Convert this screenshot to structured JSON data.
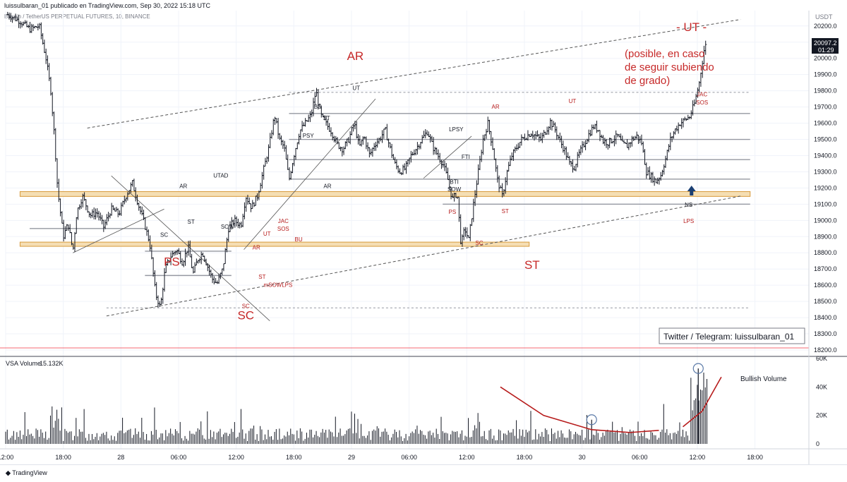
{
  "header": {
    "publisher": "luissulbaran_01 publicado en TradingView.com, Sep 30, 2022 15:18 UTC",
    "symbol": "Bitcoin / TetherUS PERPETUAL FUTURES, 10, BINANCE"
  },
  "price_axis": {
    "currency": "USDT",
    "last_price": "20097.2",
    "countdown": "01:29"
  },
  "watermark": "Twitter / Telegram: luissulbaran_01",
  "volume_pane": {
    "title": "VSA Volume",
    "value": "15.132K",
    "annotation": "Bullish Volume"
  },
  "footer": {
    "brand": "TradingView"
  },
  "annotations": {
    "ut_title": "- UT -",
    "ut_note_1": "(posible, en caso",
    "ut_note_2": "de seguir subiendo",
    "ut_note_3": "de grado)",
    "major_labels": [
      {
        "text": "PS",
        "t": 17.3,
        "p": 18720
      },
      {
        "text": "SC",
        "t": 25.0,
        "p": 18390
      },
      {
        "text": "AR",
        "t": 36.4,
        "p": 19990
      },
      {
        "text": "ST",
        "t": 54.8,
        "p": 18700
      },
      {
        "text": "- UT -",
        "t": 68.2,
        "p": 20210
      }
    ],
    "small_labels": [
      {
        "text": "SC",
        "t": 16.5,
        "p": 18900,
        "c": "#131722"
      },
      {
        "text": "AR",
        "t": 18.5,
        "p": 19200,
        "c": "#131722"
      },
      {
        "text": "ST",
        "t": 19.3,
        "p": 18980,
        "c": "#131722"
      },
      {
        "text": "UTAD",
        "t": 22.4,
        "p": 19265,
        "c": "#131722"
      },
      {
        "text": "SOW",
        "t": 23.1,
        "p": 18950,
        "c": "#131722"
      },
      {
        "text": "SC",
        "t": 25.0,
        "p": 18460,
        "c": "#b71c1c"
      },
      {
        "text": "AR",
        "t": 26.1,
        "p": 18820,
        "c": "#b71c1c"
      },
      {
        "text": "UT",
        "t": 27.2,
        "p": 18905,
        "c": "#b71c1c"
      },
      {
        "text": "ST",
        "t": 26.7,
        "p": 18640,
        "c": "#b71c1c"
      },
      {
        "text": "mSOW",
        "t": 27.8,
        "p": 18590,
        "c": "#b71c1c"
      },
      {
        "text": "LPS",
        "t": 29.3,
        "p": 18590,
        "c": "#b71c1c"
      },
      {
        "text": "JAC",
        "t": 28.9,
        "p": 18985,
        "c": "#b71c1c"
      },
      {
        "text": "SOS",
        "t": 28.9,
        "p": 18935,
        "c": "#b71c1c"
      },
      {
        "text": "BU",
        "t": 30.5,
        "p": 18870,
        "c": "#b71c1c"
      },
      {
        "text": "PSY",
        "t": 31.5,
        "p": 19510,
        "c": "#131722"
      },
      {
        "text": "BC",
        "t": 32.5,
        "p": 19690,
        "c": "#131722"
      },
      {
        "text": "ST",
        "t": 33.4,
        "p": 19620,
        "c": "#131722"
      },
      {
        "text": "AR",
        "t": 33.5,
        "p": 19200,
        "c": "#131722"
      },
      {
        "text": "UT",
        "t": 36.5,
        "p": 19805,
        "c": "#131722"
      },
      {
        "text": "LPSY",
        "t": 46.9,
        "p": 19550,
        "c": "#131722"
      },
      {
        "text": "FTI",
        "t": 47.9,
        "p": 19380,
        "c": "#131722"
      },
      {
        "text": "BTI",
        "t": 46.7,
        "p": 19225,
        "c": "#131722"
      },
      {
        "text": "SOW",
        "t": 46.7,
        "p": 19180,
        "c": "#131722"
      },
      {
        "text": "PS",
        "t": 46.5,
        "p": 19040,
        "c": "#b71c1c"
      },
      {
        "text": "SC",
        "t": 49.3,
        "p": 18850,
        "c": "#b71c1c"
      },
      {
        "text": "AR",
        "t": 51.0,
        "p": 19690,
        "c": "#b71c1c"
      },
      {
        "text": "ST",
        "t": 52.0,
        "p": 19045,
        "c": "#b71c1c"
      },
      {
        "text": "UT",
        "t": 59.0,
        "p": 19725,
        "c": "#b71c1c"
      },
      {
        "text": "NS",
        "t": 71.1,
        "p": 19085,
        "c": "#131722"
      },
      {
        "text": "LPS",
        "t": 71.1,
        "p": 18985,
        "c": "#b71c1c"
      },
      {
        "text": "JAC",
        "t": 72.5,
        "p": 19765,
        "c": "#b71c1c"
      },
      {
        "text": "SOS",
        "t": 72.5,
        "p": 19715,
        "c": "#b71c1c"
      }
    ]
  },
  "chart_data": {
    "type": "candlestick",
    "title": "Bitcoin / TetherUS PERPETUAL FUTURES, 10, BINANCE",
    "x_unit": "hours since Sep 27 12:00 UTC",
    "ylabel": "USDT",
    "ylim": [
      18150,
      20330
    ],
    "xlim": [
      0,
      77
    ],
    "yticks": [
      18200,
      18300,
      18400,
      18500,
      18600,
      18700,
      18800,
      18900,
      19000,
      19100,
      19200,
      19300,
      19400,
      19500,
      19600,
      19700,
      19800,
      19900,
      20000,
      20100,
      20200
    ],
    "xticks": [
      {
        "t": 0,
        "label": "12:00"
      },
      {
        "t": 6,
        "label": "18:00"
      },
      {
        "t": 12,
        "label": "28"
      },
      {
        "t": 18,
        "label": "06:00"
      },
      {
        "t": 24,
        "label": "12:00"
      },
      {
        "t": 30,
        "label": "18:00"
      },
      {
        "t": 36,
        "label": "29"
      },
      {
        "t": 42,
        "label": "06:00"
      },
      {
        "t": 48,
        "label": "12:00"
      },
      {
        "t": 54,
        "label": "18:00"
      },
      {
        "t": 60,
        "label": "30"
      },
      {
        "t": 66,
        "label": "06:00"
      },
      {
        "t": 72,
        "label": "12:00"
      },
      {
        "t": 78,
        "label": "18:00"
      }
    ],
    "price_path": [
      [
        0.2,
        20270
      ],
      [
        1.5,
        20230
      ],
      [
        2.5,
        20180
      ],
      [
        3.5,
        20200
      ],
      [
        4.2,
        20000
      ],
      [
        4.7,
        19800
      ],
      [
        5.1,
        19500
      ],
      [
        5.4,
        19200
      ],
      [
        5.7,
        19050
      ],
      [
        6.0,
        18900
      ],
      [
        6.5,
        18980
      ],
      [
        7.0,
        18810
      ],
      [
        7.4,
        19050
      ],
      [
        8.0,
        19150
      ],
      [
        8.8,
        19030
      ],
      [
        9.5,
        19050
      ],
      [
        10.2,
        18960
      ],
      [
        11.0,
        19070
      ],
      [
        11.8,
        19040
      ],
      [
        12.5,
        19150
      ],
      [
        13.2,
        19230
      ],
      [
        13.8,
        19100
      ],
      [
        14.4,
        18990
      ],
      [
        15.0,
        18860
      ],
      [
        15.6,
        18550
      ],
      [
        16.1,
        18460
      ],
      [
        16.6,
        18700
      ],
      [
        17.2,
        18780
      ],
      [
        17.8,
        18820
      ],
      [
        18.4,
        18740
      ],
      [
        19.0,
        18840
      ],
      [
        19.5,
        18670
      ],
      [
        20.0,
        18760
      ],
      [
        20.5,
        18800
      ],
      [
        21.0,
        18720
      ],
      [
        21.5,
        18640
      ],
      [
        22.0,
        18610
      ],
      [
        22.6,
        18700
      ],
      [
        23.2,
        18950
      ],
      [
        23.8,
        19000
      ],
      [
        24.5,
        18970
      ],
      [
        25.0,
        19150
      ],
      [
        25.6,
        19080
      ],
      [
        26.2,
        19150
      ],
      [
        26.8,
        19300
      ],
      [
        27.4,
        19450
      ],
      [
        28.0,
        19650
      ],
      [
        28.5,
        19500
      ],
      [
        29.0,
        19450
      ],
      [
        29.5,
        19250
      ],
      [
        30.0,
        19400
      ],
      [
        30.6,
        19550
      ],
      [
        31.2,
        19600
      ],
      [
        31.8,
        19650
      ],
      [
        32.3,
        19800
      ],
      [
        32.8,
        19650
      ],
      [
        33.3,
        19600
      ],
      [
        33.9,
        19550
      ],
      [
        34.5,
        19470
      ],
      [
        35.1,
        19440
      ],
      [
        35.7,
        19500
      ],
      [
        36.3,
        19600
      ],
      [
        36.8,
        19450
      ],
      [
        37.3,
        19520
      ],
      [
        37.9,
        19400
      ],
      [
        38.4,
        19470
      ],
      [
        38.9,
        19500
      ],
      [
        39.5,
        19560
      ],
      [
        40.0,
        19450
      ],
      [
        40.5,
        19350
      ],
      [
        41.0,
        19300
      ],
      [
        41.6,
        19320
      ],
      [
        42.2,
        19400
      ],
      [
        42.8,
        19450
      ],
      [
        43.3,
        19500
      ],
      [
        43.9,
        19550
      ],
      [
        44.5,
        19450
      ],
      [
        45.0,
        19400
      ],
      [
        45.5,
        19350
      ],
      [
        46.0,
        19260
      ],
      [
        46.5,
        19130
      ],
      [
        47.0,
        19170
      ],
      [
        47.4,
        18850
      ],
      [
        47.8,
        18950
      ],
      [
        48.2,
        18880
      ],
      [
        48.7,
        19100
      ],
      [
        49.2,
        19300
      ],
      [
        49.7,
        19500
      ],
      [
        50.2,
        19600
      ],
      [
        50.7,
        19450
      ],
      [
        51.2,
        19250
      ],
      [
        51.7,
        19150
      ],
      [
        52.2,
        19300
      ],
      [
        52.7,
        19400
      ],
      [
        53.2,
        19450
      ],
      [
        53.7,
        19500
      ],
      [
        54.2,
        19520
      ],
      [
        54.7,
        19540
      ],
      [
        55.2,
        19520
      ],
      [
        55.7,
        19500
      ],
      [
        56.2,
        19550
      ],
      [
        56.7,
        19610
      ],
      [
        57.2,
        19560
      ],
      [
        57.7,
        19490
      ],
      [
        58.2,
        19430
      ],
      [
        58.7,
        19350
      ],
      [
        59.2,
        19330
      ],
      [
        59.7,
        19410
      ],
      [
        60.2,
        19470
      ],
      [
        60.7,
        19530
      ],
      [
        61.2,
        19580
      ],
      [
        61.7,
        19560
      ],
      [
        62.2,
        19490
      ],
      [
        62.7,
        19480
      ],
      [
        63.2,
        19500
      ],
      [
        63.7,
        19520
      ],
      [
        64.2,
        19470
      ],
      [
        64.7,
        19460
      ],
      [
        65.2,
        19500
      ],
      [
        65.7,
        19520
      ],
      [
        66.2,
        19480
      ],
      [
        66.7,
        19300
      ],
      [
        67.2,
        19270
      ],
      [
        67.7,
        19240
      ],
      [
        68.2,
        19280
      ],
      [
        68.7,
        19380
      ],
      [
        69.2,
        19500
      ],
      [
        69.7,
        19560
      ],
      [
        70.2,
        19600
      ],
      [
        70.7,
        19620
      ],
      [
        71.2,
        19640
      ],
      [
        71.7,
        19720
      ],
      [
        72.2,
        19850
      ],
      [
        72.7,
        20050
      ],
      [
        73.0,
        20100
      ]
    ],
    "levels": [
      {
        "p": 19790,
        "style": "dashed",
        "from": 29.5,
        "to": 77.5
      },
      {
        "p": 19660,
        "style": "solid",
        "from": 29.5,
        "to": 77.5
      },
      {
        "p": 19500,
        "style": "solid",
        "from": 29.5,
        "to": 77.5
      },
      {
        "p": 19375,
        "style": "solid",
        "from": 29.5,
        "to": 77.5
      },
      {
        "p": 19255,
        "style": "solid",
        "from": 29.5,
        "to": 77.5
      },
      {
        "p": 19100,
        "style": "solid",
        "from": 45.5,
        "to": 77.5
      },
      {
        "p": 18950,
        "style": "solid",
        "from": 2.5,
        "to": 14.5
      },
      {
        "p": 18810,
        "style": "solid",
        "from": 14.5,
        "to": 23.5
      },
      {
        "p": 18660,
        "style": "solid",
        "from": 14.5,
        "to": 23.5
      },
      {
        "p": 18460,
        "style": "dashed",
        "from": 10.5,
        "to": 77.5
      }
    ],
    "zones": [
      {
        "from": 1.5,
        "to": 77.5,
        "p_low": 19148,
        "p_high": 19178
      },
      {
        "from": 1.5,
        "to": 54.5,
        "p_low": 18840,
        "p_high": 18866
      }
    ],
    "trend_lines": [
      {
        "t1": 8.5,
        "p1": 19570,
        "t2": 76.5,
        "p2": 20240,
        "style": "dashed"
      },
      {
        "t1": 10.5,
        "p1": 18410,
        "t2": 76.5,
        "p2": 19150,
        "style": "dashed"
      },
      {
        "t1": 7.0,
        "p1": 18800,
        "t2": 16.5,
        "p2": 19070,
        "style": "solid"
      },
      {
        "t1": 11.0,
        "p1": 19275,
        "t2": 27.5,
        "p2": 18380,
        "style": "solid"
      },
      {
        "t1": 24.8,
        "p1": 18820,
        "t2": 38.5,
        "p2": 19750,
        "style": "solid"
      },
      {
        "t1": 43.5,
        "p1": 19260,
        "t2": 48.5,
        "p2": 19520,
        "style": "solid"
      }
    ],
    "volume": {
      "ylim": [
        0,
        60000
      ],
      "yticks": [
        0,
        20000,
        40000,
        60000
      ],
      "ytick_labels": [
        "0",
        "20K",
        "40K",
        "60K"
      ],
      "highlight_bars": [
        {
          "t": 61.0,
          "v": 17000
        },
        {
          "t": 72.1,
          "v": 53000
        }
      ],
      "arc_decline": [
        [
          51.5,
          40000
        ],
        [
          56.0,
          20000
        ],
        [
          61.0,
          10000
        ],
        [
          65.0,
          8000
        ],
        [
          68.0,
          9500
        ]
      ],
      "arc_rise": [
        [
          70.5,
          12000
        ],
        [
          72.5,
          23000
        ],
        [
          74.5,
          47000
        ]
      ]
    }
  },
  "colors": {
    "candle": "#131722",
    "grid": "#f0f3fa",
    "label_red": "#c62828",
    "zone_fill": "#f5deb3",
    "zone_stroke": "#d79a3c",
    "price_tag_bg": "#131722",
    "arrow": "#1a3f73",
    "arc": "#b71c1c",
    "circle": "#5b7aa8"
  }
}
